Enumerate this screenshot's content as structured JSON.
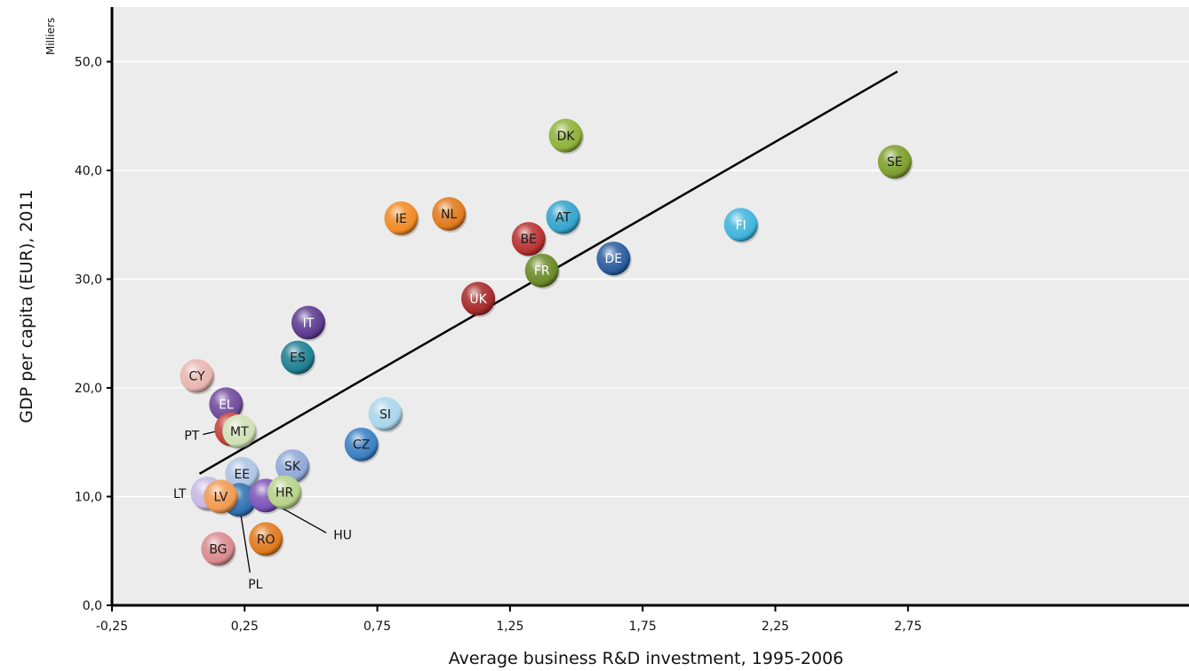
{
  "chart_data": {
    "type": "scatter",
    "title": "",
    "xlabel": "Average business R&D investment, 1995-2006",
    "ylabel": "GDP per capita (EUR), 2011",
    "y_unit_label": "Milliers",
    "xlim": [
      -0.25,
      3.0
    ],
    "ylim": [
      0,
      54
    ],
    "x_ticks": [
      -0.25,
      0.25,
      0.75,
      1.25,
      1.75,
      2.25,
      2.75
    ],
    "x_tick_labels": [
      "-0,25",
      "0,25",
      "0,75",
      "1,25",
      "1,75",
      "2,25",
      "2,75"
    ],
    "y_ticks": [
      0,
      10,
      20,
      30,
      40,
      50
    ],
    "y_tick_labels": [
      "0,0",
      "10,0",
      "20,0",
      "30,0",
      "40,0",
      "50,0"
    ],
    "grid": "horizontal",
    "trendline": {
      "x": [
        0.08,
        2.71
      ],
      "y": [
        12.1,
        49.1
      ]
    },
    "points": [
      {
        "label": "DK",
        "x": 1.46,
        "y": 43.2,
        "color": "#8fb13a",
        "text_color": "#1a1a1a"
      },
      {
        "label": "SE",
        "x": 2.7,
        "y": 40.8,
        "color": "#7e9e2e",
        "text_color": "#1a1a1a"
      },
      {
        "label": "NL",
        "x": 1.02,
        "y": 36.0,
        "color": "#e07a1e",
        "text_color": "#1a1a1a"
      },
      {
        "label": "IE",
        "x": 0.84,
        "y": 35.6,
        "color": "#f08a26",
        "text_color": "#1a1a1a"
      },
      {
        "label": "AT",
        "x": 1.45,
        "y": 35.7,
        "color": "#35a3cc",
        "text_color": "#1a1a1a"
      },
      {
        "label": "FI",
        "x": 2.12,
        "y": 35.0,
        "color": "#40b4dc",
        "text_color": "#ffffff"
      },
      {
        "label": "BE",
        "x": 1.32,
        "y": 33.7,
        "color": "#b83232",
        "text_color": "#1a1a1a"
      },
      {
        "label": "DE",
        "x": 1.64,
        "y": 31.9,
        "color": "#2a5d9e",
        "text_color": "#ffffff"
      },
      {
        "label": "FR",
        "x": 1.37,
        "y": 30.8,
        "color": "#6b8a2a",
        "text_color": "#ffffff"
      },
      {
        "label": "UK",
        "x": 1.13,
        "y": 28.2,
        "color": "#a62a2a",
        "text_color": "#ffffff"
      },
      {
        "label": "IT",
        "x": 0.49,
        "y": 26.0,
        "color": "#5c3a8e",
        "text_color": "#ffffff"
      },
      {
        "label": "ES",
        "x": 0.45,
        "y": 22.8,
        "color": "#1f7f93",
        "text_color": "#1a1a1a"
      },
      {
        "label": "CY",
        "x": 0.07,
        "y": 21.1,
        "color": "#e8b6b0",
        "text_color": "#1a1a1a"
      },
      {
        "label": "EL",
        "x": 0.18,
        "y": 18.5,
        "color": "#704a9c",
        "text_color": "#ffffff"
      },
      {
        "label": "SI",
        "x": 0.78,
        "y": 17.6,
        "color": "#a9d6ea",
        "text_color": "#1a1a1a"
      },
      {
        "label": "PT",
        "x": 0.2,
        "y": 16.2,
        "color": "#c2403a",
        "text_color": "#1a1a1a",
        "callout": "left"
      },
      {
        "label": "MT",
        "x": 0.23,
        "y": 16.0,
        "color": "#cfe0b6",
        "text_color": "#1a1a1a"
      },
      {
        "label": "CZ",
        "x": 0.69,
        "y": 14.8,
        "color": "#3a7fc2",
        "text_color": "#1a1a1a"
      },
      {
        "label": "SK",
        "x": 0.43,
        "y": 12.8,
        "color": "#8fa8d8",
        "text_color": "#1a1a1a"
      },
      {
        "label": "EE",
        "x": 0.24,
        "y": 12.1,
        "color": "#aec4e4",
        "text_color": "#1a1a1a"
      },
      {
        "label": "LT",
        "x": 0.11,
        "y": 10.3,
        "color": "#c7b8e2",
        "text_color": "#1a1a1a",
        "callout": "left"
      },
      {
        "label": "PL",
        "x": 0.23,
        "y": 9.7,
        "color": "#2f6fb0",
        "text_color": "#1a1a1a",
        "callout": "below"
      },
      {
        "label": "LV",
        "x": 0.16,
        "y": 10.0,
        "color": "#f09a52",
        "text_color": "#1a1a1a"
      },
      {
        "label": "HU",
        "x": 0.33,
        "y": 10.1,
        "color": "#7c52b8",
        "text_color": "#1a1a1a",
        "callout": "right"
      },
      {
        "label": "HR",
        "x": 0.4,
        "y": 10.4,
        "color": "#b6d28a",
        "text_color": "#1a1a1a"
      },
      {
        "label": "RO",
        "x": 0.33,
        "y": 6.1,
        "color": "#e07a1e",
        "text_color": "#1a1a1a"
      },
      {
        "label": "BG",
        "x": 0.15,
        "y": 5.2,
        "color": "#d98a8e",
        "text_color": "#1a1a1a"
      }
    ]
  }
}
